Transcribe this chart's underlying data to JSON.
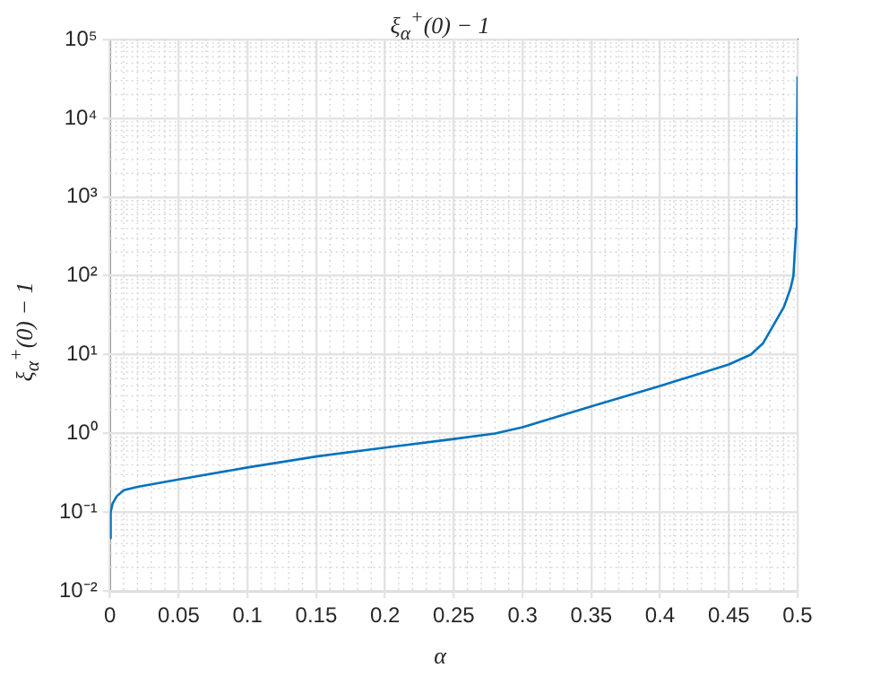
{
  "chart_data": {
    "type": "line",
    "title": "ξ$_{α}$$^{+}$(0) − 1",
    "xlabel": "α",
    "ylabel": "ξ$_{α}$$^{+}$(0) − 1",
    "x": [
      0,
      0.0005,
      0.002,
      0.005,
      0.01,
      0.02,
      0.05,
      0.1,
      0.15,
      0.2,
      0.25,
      0.28,
      0.3,
      0.35,
      0.4,
      0.45,
      0.466,
      0.475,
      0.49,
      0.495,
      0.497,
      0.499,
      0.4995,
      0.5
    ],
    "series": [
      {
        "color": "#0072bd",
        "values": [
          0.047,
          0.1,
          0.13,
          0.16,
          0.19,
          0.21,
          0.26,
          0.37,
          0.51,
          0.66,
          0.85,
          1.0,
          1.2,
          2.2,
          4.0,
          7.5,
          10,
          14,
          40,
          70,
          100,
          400,
          1500,
          34000
        ]
      }
    ],
    "xlim": [
      0,
      0.5
    ],
    "xticks": [
      0,
      0.05,
      0.1,
      0.15,
      0.2,
      0.25,
      0.3,
      0.35,
      0.4,
      0.45,
      0.5
    ],
    "ylim": [
      0.01,
      100000
    ],
    "yticks": [
      {
        "value": 0.01,
        "label": "10⁻²"
      },
      {
        "value": 0.1,
        "label": "10⁻¹"
      },
      {
        "value": 1,
        "label": "10⁰"
      },
      {
        "value": 10,
        "label": "10¹"
      },
      {
        "value": 100,
        "label": "10²"
      },
      {
        "value": 1000,
        "label": "10³"
      },
      {
        "value": 10000,
        "label": "10⁴"
      },
      {
        "value": 100000,
        "label": "10⁵"
      }
    ],
    "log": "y",
    "grid": true,
    "legend": false,
    "marker": "none",
    "line_style": "solid"
  }
}
